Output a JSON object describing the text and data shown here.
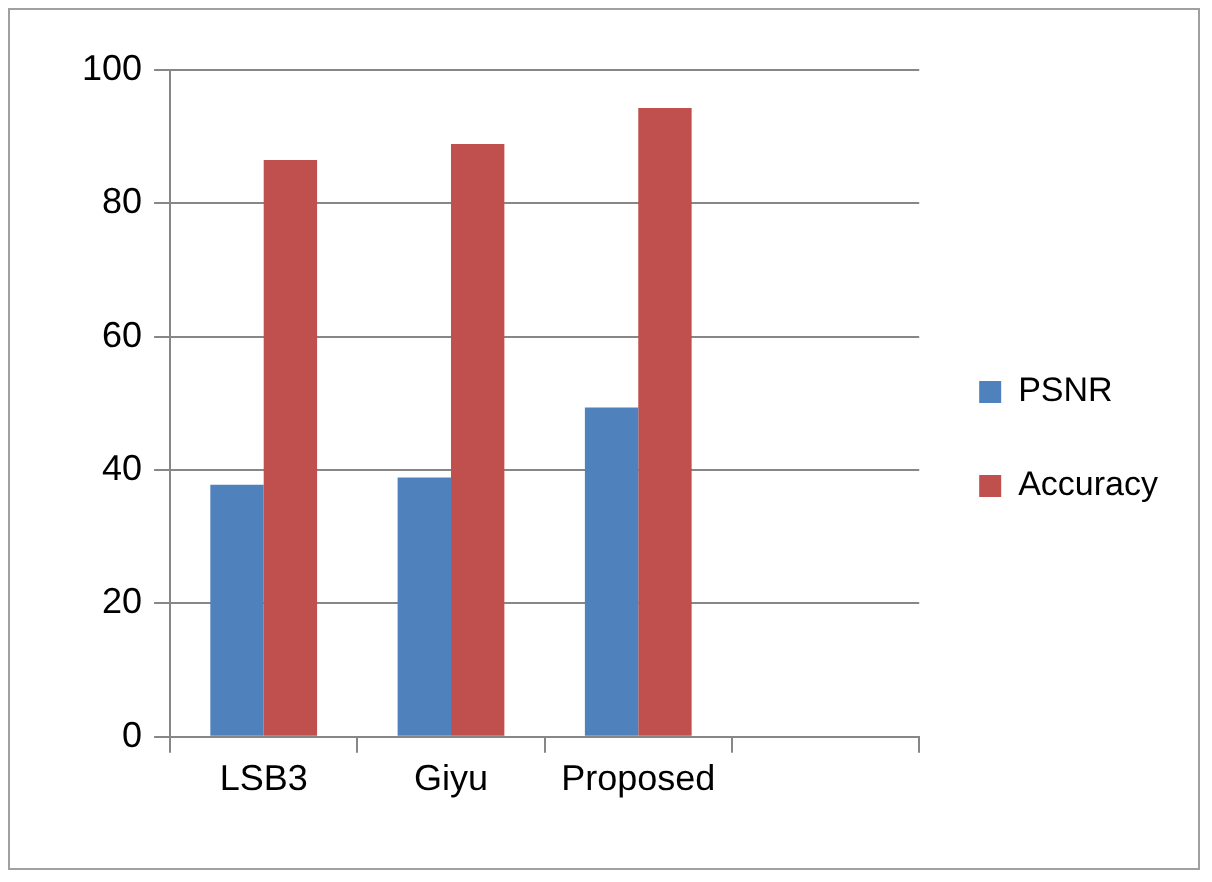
{
  "chart_data": {
    "type": "bar",
    "categories": [
      "LSB3",
      "Giyu",
      "Proposed",
      null
    ],
    "series": [
      {
        "name": "PSNR",
        "color": "#4f81bd",
        "values": [
          37.8,
          38.9,
          49.4,
          null
        ]
      },
      {
        "name": "Accuracy",
        "color": "#c0504d",
        "values": [
          86.5,
          88.9,
          94.3,
          null
        ]
      }
    ],
    "ylim": [
      0,
      100
    ],
    "yticks": [
      0,
      20,
      40,
      60,
      80,
      100
    ],
    "grid": "y",
    "legend": "right"
  }
}
